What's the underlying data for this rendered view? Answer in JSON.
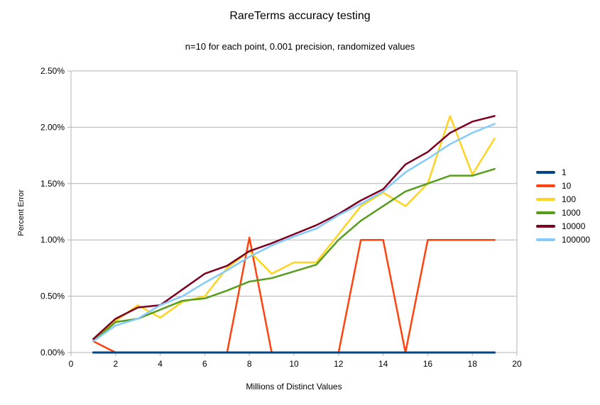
{
  "chart_data": {
    "type": "line",
    "title": "RareTerms accuracy testing",
    "subtitle": "n=10 for each point, 0.001 precision, randomized values",
    "xlabel": "Millions of Distinct Values",
    "ylabel": "Percent Error",
    "xlim": [
      0,
      20
    ],
    "ylim": [
      0,
      2.5
    ],
    "grid": "horizontal",
    "legend_position": "right",
    "xticks": {
      "values": [
        0,
        2,
        4,
        6,
        8,
        10,
        12,
        14,
        16,
        18,
        20
      ],
      "labels": [
        "0",
        "2",
        "4",
        "6",
        "8",
        "10",
        "12",
        "14",
        "16",
        "18",
        "20"
      ]
    },
    "yticks": {
      "values": [
        0,
        0.5,
        1.0,
        1.5,
        2.0,
        2.5
      ],
      "labels": [
        "0.00%",
        "0.50%",
        "1.00%",
        "1.50%",
        "2.00%",
        "2.50%"
      ]
    },
    "x": [
      1,
      2,
      3,
      4,
      5,
      6,
      7,
      8,
      9,
      10,
      11,
      12,
      13,
      14,
      15,
      16,
      17,
      18,
      19
    ],
    "series": [
      {
        "name": "1",
        "color": "#004586",
        "stroke_width": 3,
        "values": [
          0,
          0,
          0,
          0,
          0,
          0,
          0,
          0,
          0,
          0,
          0,
          0,
          0,
          0,
          0,
          0,
          0,
          0,
          0
        ]
      },
      {
        "name": "10",
        "color": "#ff420e",
        "stroke_width": 2.5,
        "values": [
          0.1,
          0,
          0,
          0,
          0,
          0,
          0,
          1.02,
          0,
          0,
          0,
          0,
          1.0,
          1.0,
          0,
          1.0,
          1.0,
          1.0,
          1.0
        ]
      },
      {
        "name": "100",
        "color": "#ffd320",
        "stroke_width": 2.5,
        "values": [
          0.12,
          0.28,
          0.42,
          0.31,
          0.45,
          0.5,
          0.75,
          0.9,
          0.7,
          0.8,
          0.8,
          1.05,
          1.3,
          1.42,
          1.3,
          1.5,
          2.1,
          1.58,
          1.9
        ]
      },
      {
        "name": "1000",
        "color": "#579d1c",
        "stroke_width": 2.5,
        "values": [
          0.1,
          0.27,
          0.3,
          0.38,
          0.46,
          0.48,
          0.55,
          0.63,
          0.66,
          0.72,
          0.78,
          1.0,
          1.17,
          1.3,
          1.43,
          1.5,
          1.57,
          1.57,
          1.63
        ]
      },
      {
        "name": "10000",
        "color": "#7e0021",
        "stroke_width": 2.5,
        "values": [
          0.12,
          0.3,
          0.4,
          0.42,
          0.56,
          0.7,
          0.77,
          0.9,
          0.97,
          1.05,
          1.13,
          1.23,
          1.35,
          1.45,
          1.67,
          1.78,
          1.95,
          2.05,
          2.1
        ]
      },
      {
        "name": "100000",
        "color": "#83caff",
        "stroke_width": 2.5,
        "values": [
          0.1,
          0.24,
          0.3,
          0.42,
          0.5,
          0.62,
          0.73,
          0.85,
          0.95,
          1.03,
          1.1,
          1.22,
          1.32,
          1.43,
          1.6,
          1.72,
          1.85,
          1.95,
          2.03
        ]
      }
    ]
  },
  "styles": {
    "grid_color": "#b3b3b3",
    "axis_color": "#b3b3b3",
    "text_color": "#000000",
    "background": "#ffffff"
  }
}
